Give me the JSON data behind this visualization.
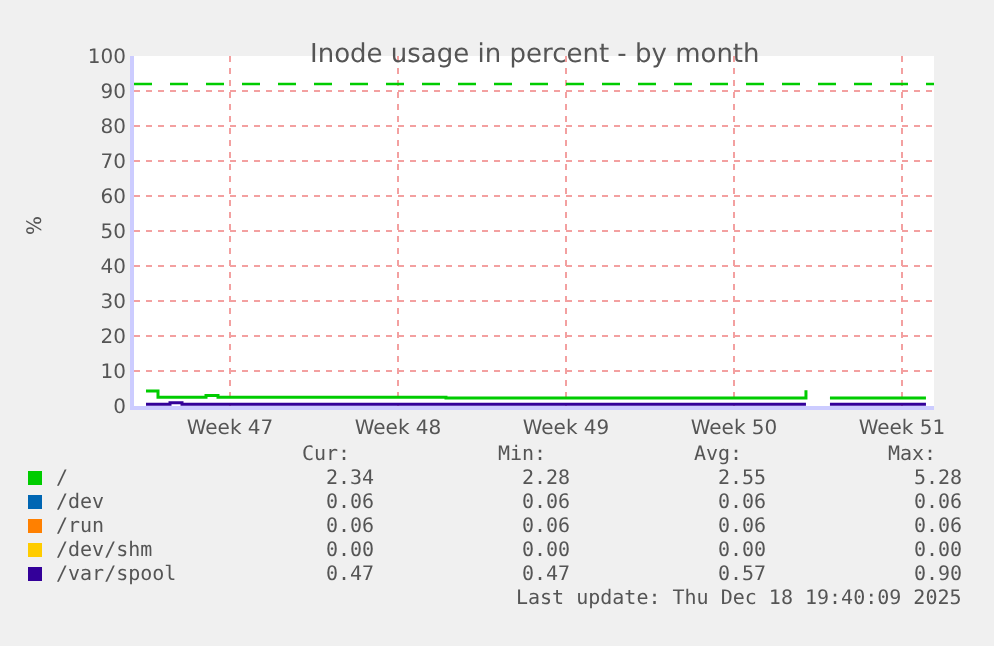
{
  "chart_data": {
    "type": "step",
    "title": "Inode usage in percent - by month",
    "ylabel": "%",
    "categories": [
      null,
      null,
      null,
      null,
      null,
      null,
      null,
      "Week 47",
      null,
      null,
      null,
      null,
      null,
      null,
      null,
      null,
      null,
      null,
      null,
      null,
      null,
      "Week 48",
      null,
      null,
      null,
      null,
      null,
      null,
      null,
      null,
      null,
      null,
      null,
      null,
      null,
      "Week 49",
      null,
      null,
      null,
      null,
      null,
      null,
      null,
      null,
      null,
      null,
      null,
      null,
      null,
      "Week 50",
      null,
      null,
      null,
      null,
      null,
      null,
      null,
      null,
      null,
      null,
      null,
      null,
      null,
      "Week 51",
      null,
      null
    ],
    "ylim": [
      0,
      100
    ],
    "yticks": [
      0,
      10,
      20,
      30,
      40,
      50,
      60,
      70,
      80,
      90,
      100
    ],
    "grid": true,
    "legend": "bottom",
    "series": [
      {
        "name": "/",
        "color": "#00cc00",
        "values": [
          4.3,
          2.5,
          2.5,
          2.5,
          2.5,
          3.0,
          2.5,
          2.5,
          2.5,
          2.5,
          2.5,
          2.5,
          2.5,
          2.5,
          2.5,
          2.5,
          2.5,
          2.5,
          2.5,
          2.5,
          2.5,
          2.5,
          2.5,
          2.5,
          2.5,
          2.3,
          2.3,
          2.3,
          2.3,
          2.3,
          2.3,
          2.3,
          2.3,
          2.3,
          2.3,
          2.3,
          2.3,
          2.3,
          2.3,
          2.3,
          2.3,
          2.3,
          2.3,
          2.3,
          2.3,
          2.3,
          2.3,
          2.3,
          2.3,
          2.3,
          2.3,
          2.3,
          2.3,
          2.3,
          2.3,
          4.5,
          null,
          2.3,
          2.3,
          2.3,
          2.3,
          2.3,
          2.3,
          2.3,
          2.3,
          2.3
        ]
      },
      {
        "name": "/dev",
        "color": "#0066b3",
        "values": [
          null,
          null,
          null,
          null,
          null,
          null,
          null,
          null,
          null,
          null,
          null,
          null,
          null,
          null,
          null,
          null,
          null,
          null,
          null,
          null,
          null,
          null,
          null,
          null,
          null,
          null,
          null,
          null,
          null,
          null,
          null,
          null,
          null,
          null,
          null,
          null,
          null,
          null,
          null,
          null,
          null,
          null,
          null,
          null,
          null,
          null,
          null,
          null,
          null,
          null,
          null,
          null,
          null,
          null,
          null,
          null,
          null,
          null,
          null,
          null,
          null,
          null,
          null,
          null,
          null,
          null
        ]
      },
      {
        "name": "/run",
        "color": "#ff8000",
        "values": [
          null,
          null,
          null,
          null,
          null,
          null,
          null,
          null,
          null,
          null,
          null,
          null,
          null,
          null,
          null,
          null,
          null,
          null,
          null,
          null,
          null,
          null,
          null,
          null,
          null,
          null,
          null,
          null,
          null,
          null,
          null,
          null,
          null,
          null,
          null,
          null,
          null,
          null,
          null,
          null,
          null,
          null,
          null,
          null,
          null,
          null,
          null,
          null,
          null,
          null,
          null,
          null,
          null,
          null,
          null,
          null,
          null,
          null,
          null,
          null,
          null,
          null,
          null,
          null,
          null,
          null
        ]
      },
      {
        "name": "/dev/shm",
        "color": "#ffcc00",
        "values": [
          null,
          null,
          null,
          null,
          null,
          null,
          null,
          null,
          null,
          null,
          null,
          null,
          null,
          null,
          null,
          null,
          null,
          null,
          null,
          null,
          null,
          null,
          null,
          null,
          null,
          null,
          null,
          null,
          null,
          null,
          null,
          null,
          null,
          null,
          null,
          null,
          null,
          null,
          null,
          null,
          null,
          null,
          null,
          null,
          null,
          null,
          null,
          null,
          null,
          null,
          null,
          null,
          null,
          null,
          null,
          null,
          null,
          null,
          null,
          null,
          null,
          null,
          null,
          null,
          null,
          null
        ]
      },
      {
        "name": "/var/spool",
        "color": "#330099",
        "values": [
          0.5,
          0.5,
          0.9,
          0.47,
          0.47,
          0.47,
          0.47,
          0.47,
          0.47,
          0.47,
          0.47,
          0.47,
          0.47,
          0.47,
          0.47,
          0.47,
          0.47,
          0.47,
          0.47,
          0.47,
          0.47,
          0.47,
          0.47,
          0.47,
          0.47,
          0.47,
          0.47,
          0.47,
          0.47,
          0.47,
          0.47,
          0.47,
          0.47,
          0.47,
          0.47,
          0.47,
          0.47,
          0.47,
          0.47,
          0.47,
          0.47,
          0.47,
          0.47,
          0.47,
          0.47,
          0.47,
          0.47,
          0.47,
          0.47,
          0.47,
          0.47,
          0.47,
          0.47,
          0.47,
          0.47,
          0.47,
          null,
          0.47,
          0.47,
          0.47,
          0.47,
          0.47,
          0.47,
          0.47,
          0.47,
          0.47
        ]
      }
    ],
    "ref_lines": [
      {
        "axis": "y",
        "value": 92,
        "color": "#00cc00",
        "line_style": "dashed"
      }
    ],
    "annotations": [
      "Cur:",
      "Min:",
      "Avg:",
      "Max:",
      "2.34",
      "2.28",
      "2.55",
      "5.28",
      "0.06",
      "0.06",
      "0.06",
      "0.06",
      "0.06",
      "0.06",
      "0.06",
      "0.06",
      "0.00",
      "0.00",
      "0.00",
      "0.00",
      "0.47",
      "0.47",
      "0.57",
      "0.90",
      "Last update: Thu Dec 18 19:40:09 2025"
    ]
  }
}
